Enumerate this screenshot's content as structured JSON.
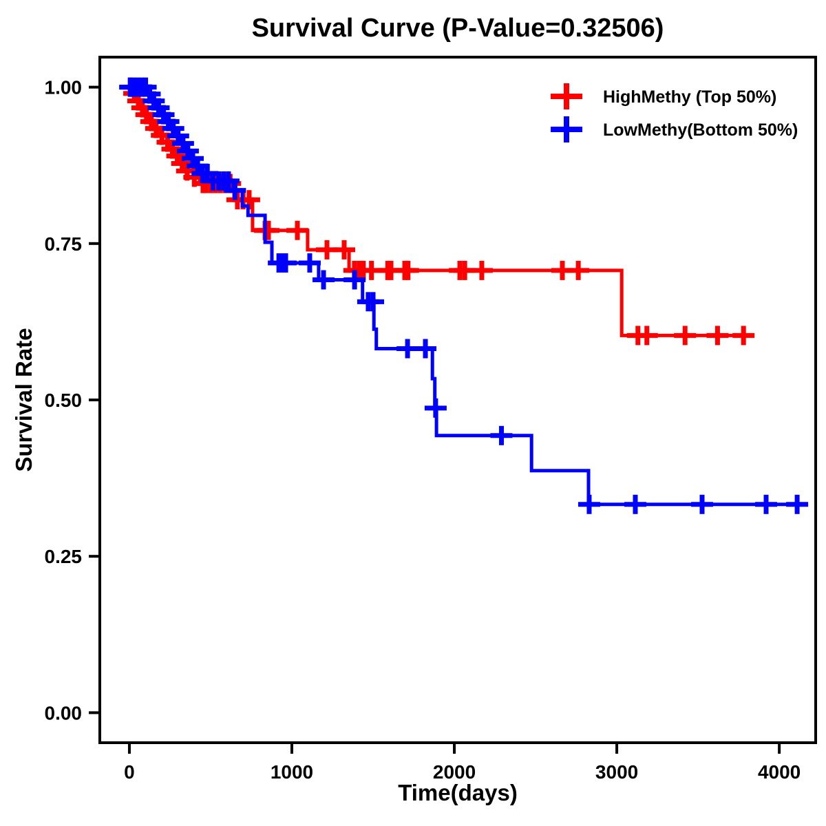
{
  "page": {
    "background_color": "#FFFFFF",
    "text_color": "#000000",
    "border_color": "#000000"
  },
  "chart_data": {
    "type": "line",
    "subtype": "kaplan-meier-step-survival",
    "title": "Survival Curve (P-Value=0.32506)",
    "p_value": "0.32506",
    "xlabel": "Time(days)",
    "ylabel": "Survival Rate",
    "grid": false,
    "legend_position": "top-right-inside",
    "xlim": [
      -182,
      4224
    ],
    "ylim": [
      -0.048,
      1.048
    ],
    "x_ticks": [
      {
        "v": 0,
        "label": "0"
      },
      {
        "v": 1000,
        "label": "1000"
      },
      {
        "v": 2000,
        "label": "2000"
      },
      {
        "v": 3000,
        "label": "3000"
      },
      {
        "v": 4000,
        "label": "4000"
      }
    ],
    "y_ticks": [
      {
        "v": 1.0,
        "label": "1.00"
      },
      {
        "v": 0.75,
        "label": "0.75"
      },
      {
        "v": 0.5,
        "label": "0.50"
      },
      {
        "v": 0.25,
        "label": "0.25"
      },
      {
        "v": 0.0,
        "label": "0.00"
      }
    ],
    "series": [
      {
        "name": "HighMethy (Top 50%)",
        "color": "#FF0000",
        "steps": [
          [
            0,
            1.0
          ],
          [
            15,
            0.99
          ],
          [
            40,
            0.978
          ],
          [
            65,
            0.967
          ],
          [
            90,
            0.956
          ],
          [
            115,
            0.945
          ],
          [
            145,
            0.934
          ],
          [
            175,
            0.923
          ],
          [
            205,
            0.912
          ],
          [
            240,
            0.901
          ],
          [
            270,
            0.89
          ],
          [
            300,
            0.878
          ],
          [
            330,
            0.866
          ],
          [
            360,
            0.856
          ],
          [
            432,
            0.846
          ],
          [
            644,
            0.82
          ],
          [
            758,
            0.771
          ],
          [
            1097,
            0.74
          ],
          [
            1352,
            0.707
          ],
          [
            3030,
            0.603
          ]
        ],
        "end_day": 3830,
        "censor_days": [
          8,
          30,
          55,
          80,
          105,
          135,
          165,
          200,
          235,
          265,
          295,
          325,
          355,
          400,
          453,
          470,
          500,
          530,
          560,
          590,
          620,
          665,
          700,
          737,
          835,
          856,
          1034,
          1216,
          1322,
          1385,
          1415,
          1440,
          1490,
          1590,
          1610,
          1695,
          1715,
          2034,
          2064,
          2169,
          2665,
          2763,
          3130,
          3185,
          3420,
          3620,
          3780
        ]
      },
      {
        "name": "LowMethy(Bottom 50%)",
        "color": "#0000FF",
        "steps": [
          [
            0,
            1.0
          ],
          [
            110,
            0.989
          ],
          [
            140,
            0.978
          ],
          [
            170,
            0.967
          ],
          [
            200,
            0.956
          ],
          [
            230,
            0.945
          ],
          [
            260,
            0.934
          ],
          [
            290,
            0.922
          ],
          [
            320,
            0.91
          ],
          [
            350,
            0.898
          ],
          [
            380,
            0.886
          ],
          [
            410,
            0.874
          ],
          [
            440,
            0.862
          ],
          [
            508,
            0.85
          ],
          [
            640,
            0.835
          ],
          [
            695,
            0.81
          ],
          [
            730,
            0.795
          ],
          [
            835,
            0.752
          ],
          [
            877,
            0.719
          ],
          [
            1165,
            0.692
          ],
          [
            1435,
            0.657
          ],
          [
            1505,
            0.613
          ],
          [
            1520,
            0.582
          ],
          [
            1865,
            0.534
          ],
          [
            1880,
            0.487
          ],
          [
            1890,
            0.443
          ],
          [
            2475,
            0.387
          ],
          [
            2826,
            0.333
          ]
        ],
        "end_day": 4169,
        "censor_days": [
          5,
          25,
          50,
          75,
          100,
          125,
          150,
          180,
          210,
          240,
          270,
          300,
          330,
          360,
          390,
          420,
          450,
          480,
          515,
          550,
          580,
          610,
          650,
          920,
          940,
          962,
          1110,
          1195,
          1386,
          1470,
          1500,
          1712,
          1822,
          1885,
          2290,
          2830,
          3114,
          3525,
          3919,
          4110
        ]
      }
    ]
  },
  "legend": {
    "items": [
      {
        "label": "HighMethy (Top 50%)",
        "color": "#FF0000",
        "symbol": "plus"
      },
      {
        "label": "LowMethy(Bottom 50%)",
        "color": "#0000FF",
        "symbol": "plus"
      }
    ]
  }
}
